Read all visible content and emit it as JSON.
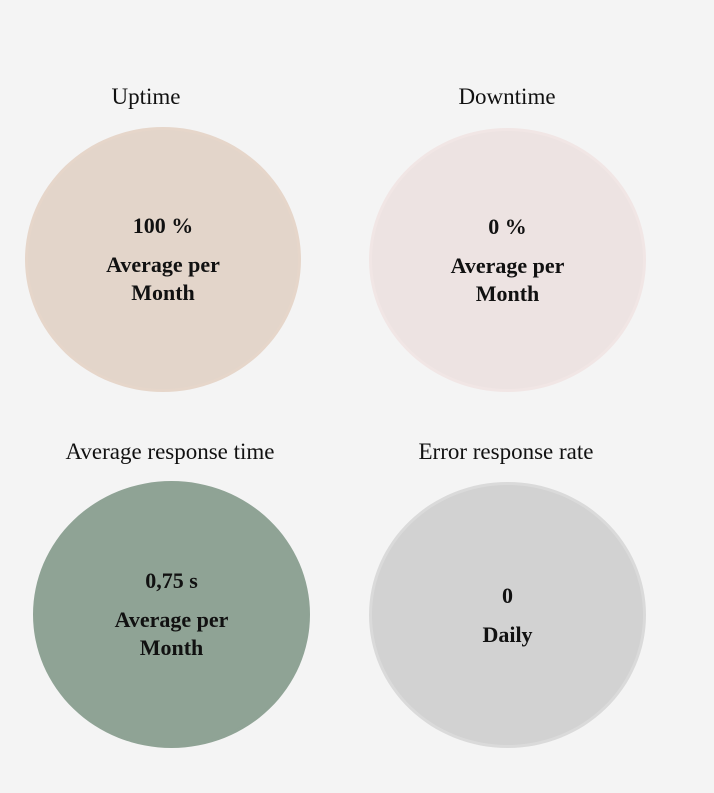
{
  "cards": [
    {
      "title": "Uptime",
      "value": "100 %",
      "label": "Average per Month",
      "color": "#e3d5ca"
    },
    {
      "title": "Downtime",
      "value": "0 %",
      "label": "Average per Month",
      "color": "#ede3e2"
    },
    {
      "title": "Average response time",
      "value": "0,75 s",
      "label": "Average per Month",
      "color": "#8fa395"
    },
    {
      "title": "Error response rate",
      "value": "0",
      "label": "Daily",
      "color": "#d2d2d2"
    }
  ]
}
